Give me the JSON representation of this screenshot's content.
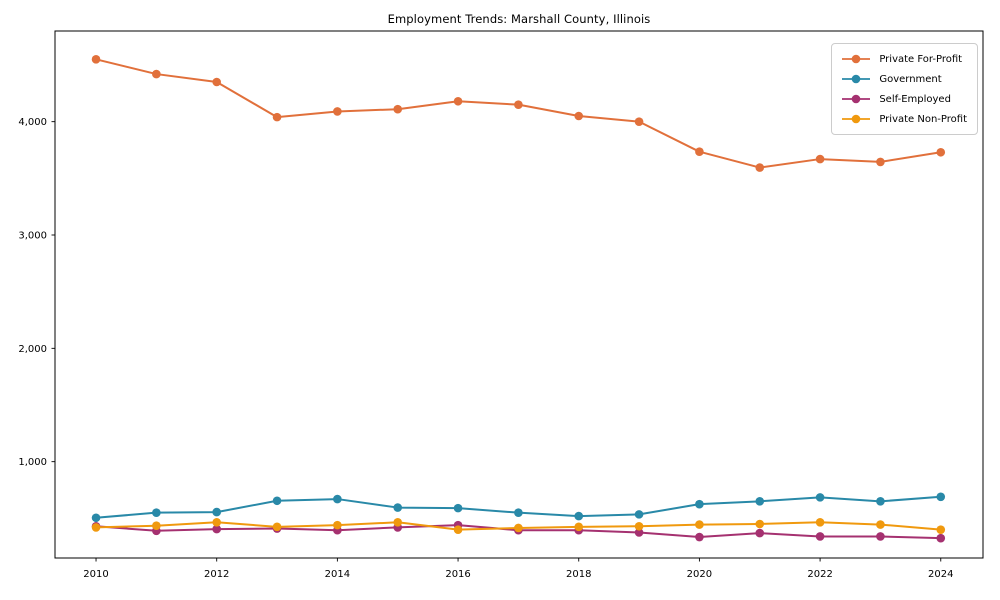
{
  "chart_data": {
    "type": "line",
    "title": "Employment Trends: Marshall County, Illinois",
    "xlabel": "",
    "ylabel": "",
    "x": [
      2010,
      2011,
      2012,
      2013,
      2014,
      2015,
      2016,
      2017,
      2018,
      2019,
      2020,
      2021,
      2022,
      2023,
      2024
    ],
    "series": [
      {
        "name": "Private For-Profit",
        "color": "#e1703b",
        "values": [
          4550,
          4420,
          4350,
          4040,
          4090,
          4110,
          4180,
          4150,
          4050,
          4000,
          3735,
          3595,
          3670,
          3645,
          3730
        ]
      },
      {
        "name": "Government",
        "color": "#2989a8",
        "values": [
          505,
          550,
          555,
          655,
          670,
          595,
          590,
          550,
          520,
          535,
          625,
          650,
          685,
          650,
          690
        ]
      },
      {
        "name": "Self-Employed",
        "color": "#a53170",
        "values": [
          430,
          390,
          405,
          410,
          395,
          420,
          440,
          395,
          395,
          375,
          335,
          370,
          340,
          340,
          325
        ]
      },
      {
        "name": "Private Non-Profit",
        "color": "#f0990e",
        "values": [
          420,
          435,
          465,
          425,
          440,
          465,
          400,
          415,
          425,
          430,
          445,
          450,
          465,
          445,
          400
        ]
      }
    ],
    "xticks": [
      2010,
      2012,
      2014,
      2016,
      2018,
      2020,
      2022,
      2024
    ],
    "xtick_labels": [
      "2010",
      "2012",
      "2014",
      "2016",
      "2018",
      "2020",
      "2022",
      "2024"
    ],
    "yticks": [
      1000,
      2000,
      3000,
      4000
    ],
    "ytick_labels": [
      "1,000",
      "2,000",
      "3,000",
      "4,000"
    ],
    "xlim": [
      2009.32,
      2024.7
    ],
    "ylim": [
      150,
      4800
    ],
    "grid": false,
    "legend_position": "upper right",
    "marker": "o"
  }
}
